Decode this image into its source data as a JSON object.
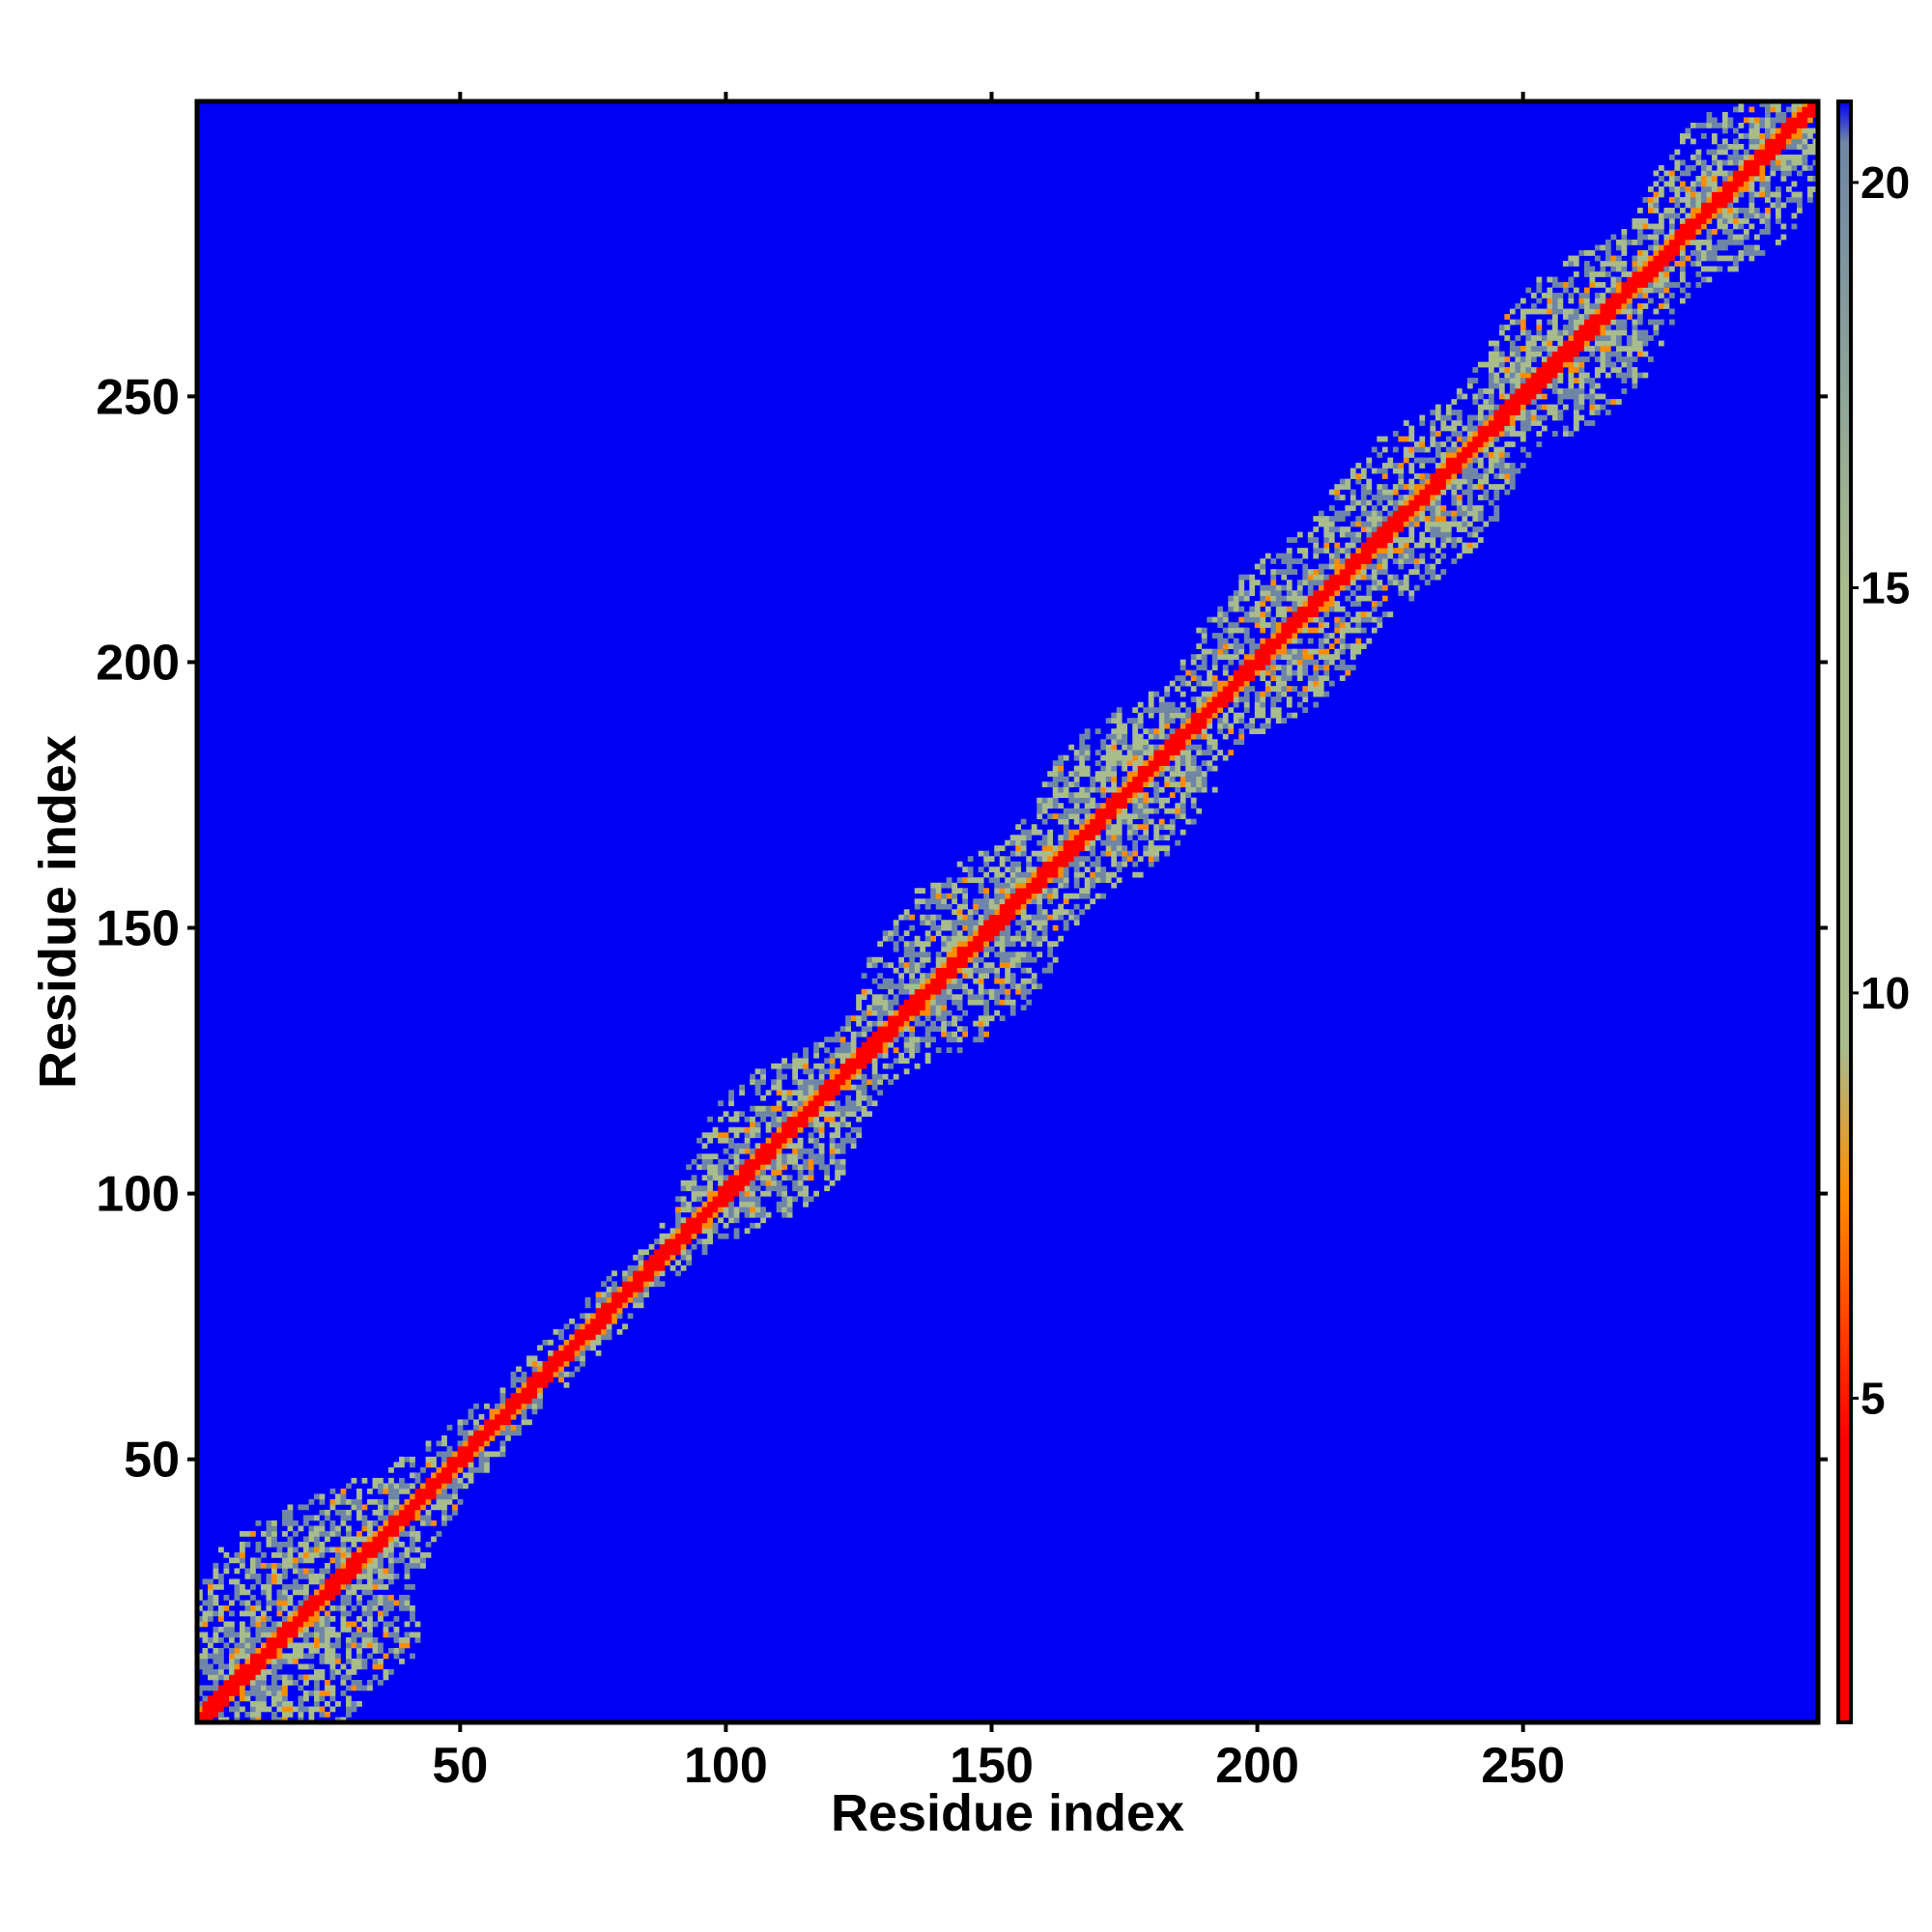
{
  "chart_data": {
    "type": "heatmap",
    "title": "",
    "xlabel": "Residue index",
    "ylabel": "Residue index",
    "n_residues": 305,
    "xlim": [
      1,
      305
    ],
    "ylim": [
      1,
      305
    ],
    "x_ticks": [
      50,
      100,
      150,
      200,
      250
    ],
    "y_ticks": [
      50,
      100,
      150,
      200,
      250
    ],
    "colorbar": {
      "range": [
        1,
        21
      ],
      "ticks": [
        5,
        10,
        15,
        20
      ],
      "colors": {
        "near": "#ff0000",
        "mid": "#ff8c00",
        "far": "#a8bc8c",
        "very_far": "#6f86a6",
        "background": "#0000f5"
      }
    },
    "diagonal_band_halfwidth_residues": 2,
    "contact_clusters": [
      {
        "center": [
          10,
          10
        ],
        "spread": [
          30,
          45
        ]
      },
      {
        "center": [
          30,
          15
        ],
        "spread": [
          12,
          8
        ]
      },
      {
        "center": [
          110,
          110
        ],
        "spread": [
          14,
          14
        ]
      },
      {
        "center": [
          145,
          145
        ],
        "spread": [
          18,
          18
        ]
      },
      {
        "center": [
          175,
          175
        ],
        "spread": [
          16,
          16
        ]
      },
      {
        "center": [
          205,
          205
        ],
        "spread": [
          16,
          16
        ]
      },
      {
        "center": [
          230,
          230
        ],
        "spread": [
          16,
          16
        ]
      },
      {
        "center": [
          260,
          260
        ],
        "spread": [
          16,
          16
        ]
      },
      {
        "center": [
          290,
          290
        ],
        "spread": [
          15,
          15
        ]
      }
    ]
  }
}
